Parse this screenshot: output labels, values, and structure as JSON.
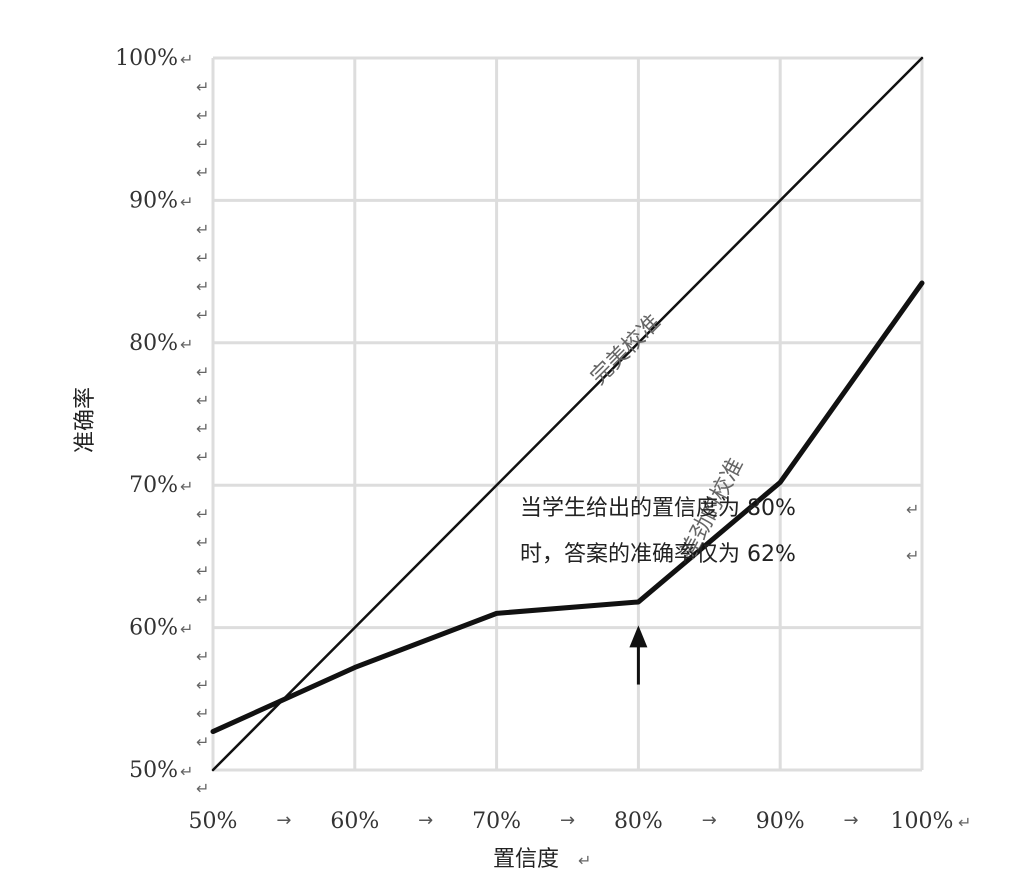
{
  "chart_data": {
    "type": "line",
    "xlabel": "置信度",
    "ylabel": "准确率",
    "x_ticks": [
      "50%",
      "60%",
      "70%",
      "80%",
      "90%",
      "100%"
    ],
    "y_ticks": [
      "50%",
      "60%",
      "70%",
      "80%",
      "90%",
      "100%"
    ],
    "xlim": [
      50,
      100
    ],
    "ylim": [
      50,
      100
    ],
    "grid": true,
    "series": [
      {
        "name": "完美校准",
        "x": [
          50,
          100
        ],
        "y": [
          50,
          100
        ],
        "color": "#111111",
        "style": "thin"
      },
      {
        "name": "差劲的校准",
        "x": [
          50,
          60,
          70,
          80,
          90,
          100
        ],
        "y": [
          52.7,
          57.2,
          61,
          61.8,
          70.2,
          84.2
        ],
        "color": "#111111",
        "style": "thick"
      }
    ],
    "annotations": [
      {
        "text": "当学生给出的置信度为 80%"
      },
      {
        "text": "时，答案的准确率仅为 62%"
      }
    ],
    "arrow": {
      "x": 80,
      "y_from": 56,
      "y_to": 61
    },
    "return_mark": "↵",
    "tick_separator": "→"
  }
}
